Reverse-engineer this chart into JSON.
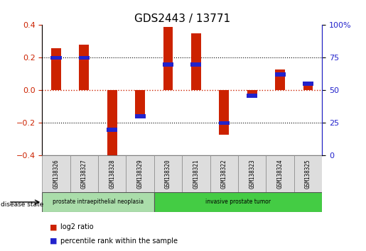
{
  "title": "GDS2443 / 13771",
  "samples": [
    "GSM138326",
    "GSM138327",
    "GSM138328",
    "GSM138329",
    "GSM138320",
    "GSM138321",
    "GSM138322",
    "GSM138323",
    "GSM138324",
    "GSM138325"
  ],
  "log2_ratio": [
    0.26,
    0.28,
    -0.44,
    -0.17,
    0.39,
    0.35,
    -0.27,
    -0.03,
    0.13,
    0.05
  ],
  "percentile_rank": [
    75,
    75,
    20,
    30,
    70,
    70,
    25,
    46,
    62,
    55
  ],
  "bar_color_red": "#cc2200",
  "bar_color_blue": "#2222cc",
  "ylim_left": [
    -0.4,
    0.4
  ],
  "ylim_right": [
    0,
    100
  ],
  "yticks_left": [
    -0.4,
    -0.2,
    0.0,
    0.2,
    0.4
  ],
  "yticks_right": [
    0,
    25,
    50,
    75,
    100
  ],
  "ytick_labels_right": [
    "0",
    "25",
    "50",
    "75",
    "100%"
  ],
  "hline_zero_color": "#cc2200",
  "disease_groups": [
    {
      "label": "prostate intraepithelial neoplasia",
      "start": 0,
      "end": 4,
      "color": "#aaddaa"
    },
    {
      "label": "invasive prostate tumor",
      "start": 4,
      "end": 10,
      "color": "#44cc44"
    }
  ],
  "disease_state_label": "disease state",
  "legend_items": [
    {
      "color": "#cc2200",
      "label": "log2 ratio"
    },
    {
      "color": "#2222cc",
      "label": "percentile rank within the sample"
    }
  ],
  "bar_width": 0.35,
  "blue_bar_height": 0.025,
  "background_color": "#ffffff",
  "title_fontsize": 11,
  "tick_fontsize": 8,
  "n_samples": 10,
  "sample_box_color": "#dddddd",
  "sample_box_edge": "#888888"
}
